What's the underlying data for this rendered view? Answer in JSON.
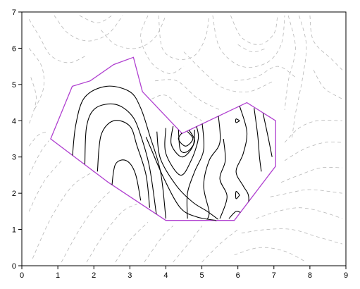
{
  "chart_data": {
    "type": "contour",
    "title": "",
    "xlabel": "",
    "ylabel": "",
    "xlim": [
      0,
      9
    ],
    "ylim": [
      0,
      7
    ],
    "xticks": [
      "0",
      "1",
      "2",
      "3",
      "4",
      "5",
      "6",
      "7",
      "8",
      "9"
    ],
    "yticks": [
      "0",
      "1",
      "2",
      "3",
      "4",
      "5",
      "6",
      "7"
    ],
    "grid": false,
    "colors": {
      "boundary": "#b040d0",
      "inner_contours": "#000000",
      "outer_contours": "#b8b8b8"
    },
    "boundary_polygon": [
      [
        0.8,
        3.5
      ],
      [
        1.4,
        4.95
      ],
      [
        1.9,
        5.1
      ],
      [
        2.55,
        5.55
      ],
      [
        3.1,
        5.75
      ],
      [
        3.35,
        4.8
      ],
      [
        4.45,
        3.65
      ],
      [
        6.25,
        4.5
      ],
      [
        7.05,
        4.0
      ],
      [
        7.05,
        2.75
      ],
      [
        5.9,
        1.25
      ],
      [
        4.0,
        1.25
      ],
      [
        2.4,
        2.3
      ],
      [
        0.8,
        3.5
      ]
    ],
    "inner_contours": [
      [
        [
          1.4,
          2.95
        ],
        [
          1.5,
          3.9
        ],
        [
          1.75,
          4.65
        ],
        [
          2.35,
          4.95
        ],
        [
          3.0,
          4.8
        ],
        [
          3.3,
          4.35
        ],
        [
          3.55,
          3.6
        ],
        [
          3.85,
          2.6
        ],
        [
          4.0,
          1.3
        ]
      ],
      [
        [
          1.75,
          2.8
        ],
        [
          1.8,
          3.85
        ],
        [
          2.05,
          4.35
        ],
        [
          2.6,
          4.45
        ],
        [
          3.05,
          4.15
        ],
        [
          3.3,
          3.6
        ],
        [
          3.55,
          2.7
        ],
        [
          3.75,
          1.3
        ]
      ],
      [
        [
          2.1,
          2.6
        ],
        [
          2.2,
          3.6
        ],
        [
          2.55,
          4.0
        ],
        [
          3.0,
          3.85
        ],
        [
          3.2,
          3.3
        ],
        [
          3.45,
          2.5
        ],
        [
          3.55,
          1.6
        ]
      ],
      [
        [
          2.5,
          2.2
        ],
        [
          2.6,
          2.8
        ],
        [
          2.9,
          2.9
        ],
        [
          3.15,
          2.55
        ],
        [
          3.3,
          1.8
        ]
      ],
      [
        [
          3.45,
          3.55
        ],
        [
          3.6,
          3.2
        ],
        [
          3.95,
          2.4
        ],
        [
          4.4,
          1.6
        ],
        [
          4.85,
          1.35
        ],
        [
          5.4,
          1.25
        ]
      ],
      [
        [
          3.75,
          3.7
        ],
        [
          3.85,
          2.95
        ],
        [
          4.3,
          2.2
        ],
        [
          4.75,
          1.75
        ],
        [
          5.15,
          1.5
        ],
        [
          5.45,
          1.28
        ]
      ],
      [
        [
          4.0,
          3.8
        ],
        [
          4.0,
          3.1
        ],
        [
          4.4,
          2.5
        ],
        [
          4.7,
          2.9
        ],
        [
          4.9,
          3.5
        ],
        [
          4.85,
          3.85
        ]
      ],
      [
        [
          4.2,
          3.85
        ],
        [
          4.15,
          3.35
        ],
        [
          4.45,
          3.0
        ],
        [
          4.75,
          3.3
        ],
        [
          4.8,
          3.75
        ]
      ],
      [
        [
          4.5,
          3.72
        ],
        [
          4.35,
          3.5
        ],
        [
          4.55,
          3.3
        ],
        [
          4.75,
          3.5
        ],
        [
          4.6,
          3.7
        ]
      ],
      [
        [
          4.35,
          3.75
        ],
        [
          4.4,
          3.2
        ],
        [
          4.6,
          3.15
        ],
        [
          4.8,
          3.45
        ],
        [
          4.6,
          3.8
        ]
      ],
      [
        [
          5.0,
          4.0
        ],
        [
          5.05,
          3.2
        ],
        [
          4.8,
          2.6
        ],
        [
          4.6,
          2.0
        ],
        [
          4.6,
          1.3
        ]
      ],
      [
        [
          5.45,
          4.2
        ],
        [
          5.5,
          3.4
        ],
        [
          5.2,
          2.9
        ],
        [
          5.05,
          2.2
        ],
        [
          5.2,
          1.5
        ],
        [
          5.15,
          1.28
        ]
      ],
      [
        [
          5.6,
          3.5
        ],
        [
          5.65,
          2.9
        ],
        [
          5.5,
          2.4
        ],
        [
          5.7,
          1.9
        ],
        [
          5.5,
          1.3
        ]
      ],
      [
        [
          5.75,
          1.3
        ],
        [
          5.95,
          1.5
        ],
        [
          6.1,
          1.45
        ]
      ],
      [
        [
          6.05,
          4.4
        ],
        [
          6.25,
          3.7
        ],
        [
          6.15,
          3.1
        ],
        [
          5.95,
          2.6
        ],
        [
          6.15,
          2.2
        ],
        [
          6.3,
          1.9
        ],
        [
          6.25,
          1.3
        ]
      ],
      [
        [
          6.45,
          4.35
        ],
        [
          6.55,
          3.6
        ],
        [
          6.6,
          3.0
        ],
        [
          6.65,
          2.6
        ]
      ],
      [
        [
          6.7,
          4.2
        ],
        [
          6.85,
          3.5
        ],
        [
          6.95,
          3.0
        ]
      ],
      [
        [
          6.05,
          4.0
        ],
        [
          5.95,
          3.95
        ],
        [
          5.95,
          4.05
        ],
        [
          6.05,
          4.0
        ]
      ],
      [
        [
          6.05,
          1.95
        ],
        [
          5.95,
          1.85
        ],
        [
          5.95,
          2.05
        ],
        [
          6.05,
          1.95
        ]
      ]
    ],
    "outer_contours": [
      [
        [
          0.2,
          6.8
        ],
        [
          0.5,
          6.3
        ],
        [
          0.8,
          5.8
        ],
        [
          1.3,
          5.6
        ],
        [
          1.8,
          5.8
        ]
      ],
      [
        [
          0.2,
          6.0
        ],
        [
          0.55,
          5.5
        ],
        [
          0.6,
          4.9
        ],
        [
          0.35,
          4.3
        ]
      ],
      [
        [
          0.25,
          5.2
        ],
        [
          0.4,
          4.6
        ],
        [
          0.2,
          3.9
        ]
      ],
      [
        [
          0.9,
          6.9
        ],
        [
          1.3,
          6.4
        ],
        [
          1.85,
          6.2
        ],
        [
          2.4,
          6.4
        ],
        [
          2.8,
          6.9
        ]
      ],
      [
        [
          1.6,
          6.9
        ],
        [
          2.1,
          6.7
        ],
        [
          2.5,
          6.9
        ]
      ],
      [
        [
          2.2,
          6.5
        ],
        [
          2.6,
          6.1
        ],
        [
          3.2,
          6.0
        ],
        [
          3.7,
          6.3
        ],
        [
          4.0,
          6.9
        ]
      ],
      [
        [
          3.5,
          6.9
        ],
        [
          3.3,
          6.3
        ],
        [
          3.6,
          5.6
        ],
        [
          4.1,
          5.3
        ],
        [
          4.5,
          5.5
        ]
      ],
      [
        [
          3.8,
          6.9
        ],
        [
          3.9,
          6.0
        ],
        [
          4.3,
          5.7
        ],
        [
          4.8,
          5.8
        ],
        [
          5.1,
          6.3
        ],
        [
          5.2,
          6.9
        ]
      ],
      [
        [
          3.6,
          4.6
        ],
        [
          4.0,
          4.7
        ],
        [
          4.5,
          4.3
        ],
        [
          5.0,
          4.0
        ]
      ],
      [
        [
          3.7,
          5.1
        ],
        [
          4.3,
          5.1
        ],
        [
          4.9,
          4.6
        ],
        [
          5.5,
          4.3
        ]
      ],
      [
        [
          4.5,
          5.9
        ],
        [
          5.1,
          5.3
        ],
        [
          5.6,
          4.9
        ],
        [
          6.3,
          4.8
        ],
        [
          7.0,
          5.1
        ]
      ],
      [
        [
          5.3,
          6.9
        ],
        [
          5.5,
          6.0
        ],
        [
          6.1,
          5.5
        ],
        [
          6.8,
          5.6
        ],
        [
          7.2,
          6.1
        ],
        [
          7.3,
          6.9
        ]
      ],
      [
        [
          5.8,
          6.9
        ],
        [
          6.1,
          6.3
        ],
        [
          6.6,
          6.1
        ],
        [
          7.0,
          6.4
        ],
        [
          7.1,
          6.9
        ]
      ],
      [
        [
          6.0,
          6.1
        ],
        [
          6.4,
          5.9
        ],
        [
          6.8,
          6.0
        ]
      ],
      [
        [
          5.9,
          5.1
        ],
        [
          6.5,
          5.2
        ],
        [
          7.1,
          5.5
        ],
        [
          7.6,
          5.2
        ]
      ],
      [
        [
          7.4,
          6.9
        ],
        [
          7.6,
          6.0
        ],
        [
          7.4,
          5.1
        ],
        [
          7.3,
          4.3
        ]
      ],
      [
        [
          7.7,
          6.9
        ],
        [
          7.9,
          6.1
        ],
        [
          7.8,
          5.2
        ],
        [
          7.6,
          4.2
        ],
        [
          7.5,
          3.5
        ]
      ],
      [
        [
          8.0,
          6.9
        ],
        [
          8.1,
          6.2
        ],
        [
          8.6,
          5.7
        ],
        [
          8.9,
          5.4
        ]
      ],
      [
        [
          8.1,
          5.4
        ],
        [
          8.4,
          4.9
        ],
        [
          8.9,
          4.6
        ]
      ],
      [
        [
          7.3,
          3.4
        ],
        [
          7.7,
          3.8
        ],
        [
          8.2,
          4.0
        ],
        [
          8.9,
          4.0
        ]
      ],
      [
        [
          7.3,
          2.9
        ],
        [
          7.8,
          3.2
        ],
        [
          8.4,
          3.4
        ],
        [
          8.9,
          3.4
        ]
      ],
      [
        [
          7.2,
          2.3
        ],
        [
          7.7,
          2.5
        ],
        [
          8.3,
          2.7
        ],
        [
          8.9,
          2.7
        ]
      ],
      [
        [
          6.9,
          1.9
        ],
        [
          7.4,
          2.0
        ],
        [
          8.0,
          2.1
        ],
        [
          8.9,
          2.0
        ]
      ],
      [
        [
          6.5,
          1.3
        ],
        [
          7.1,
          1.5
        ],
        [
          7.7,
          1.6
        ],
        [
          8.3,
          1.5
        ],
        [
          8.9,
          1.3
        ]
      ],
      [
        [
          6.1,
          0.9
        ],
        [
          6.8,
          1.0
        ],
        [
          7.5,
          1.0
        ],
        [
          8.2,
          0.8
        ],
        [
          8.9,
          0.6
        ]
      ],
      [
        [
          5.9,
          0.3
        ],
        [
          6.6,
          0.5
        ],
        [
          7.3,
          0.4
        ],
        [
          7.9,
          0.1
        ]
      ],
      [
        [
          5.0,
          0.1
        ],
        [
          5.5,
          0.6
        ],
        [
          6.0,
          1.0
        ]
      ],
      [
        [
          4.2,
          0.1
        ],
        [
          4.7,
          0.7
        ],
        [
          5.0,
          1.1
        ]
      ],
      [
        [
          3.4,
          0.1
        ],
        [
          3.9,
          0.8
        ],
        [
          4.2,
          1.1
        ]
      ],
      [
        [
          2.6,
          0.1
        ],
        [
          3.0,
          0.7
        ],
        [
          3.5,
          1.2
        ]
      ],
      [
        [
          1.8,
          0.1
        ],
        [
          2.3,
          0.9
        ],
        [
          2.8,
          1.5
        ],
        [
          3.2,
          1.7
        ]
      ],
      [
        [
          1.1,
          0.1
        ],
        [
          1.6,
          1.0
        ],
        [
          2.1,
          1.7
        ],
        [
          2.5,
          2.1
        ]
      ],
      [
        [
          0.3,
          0.2
        ],
        [
          0.8,
          1.3
        ],
        [
          1.4,
          2.2
        ],
        [
          2.0,
          2.6
        ]
      ],
      [
        [
          0.2,
          1.5
        ],
        [
          0.6,
          2.3
        ],
        [
          1.1,
          2.9
        ]
      ],
      [
        [
          0.2,
          2.5
        ],
        [
          0.5,
          3.1
        ],
        [
          0.75,
          3.45
        ]
      ],
      [
        [
          0.2,
          3.3
        ],
        [
          0.45,
          3.6
        ],
        [
          0.7,
          3.7
        ]
      ],
      [
        [
          5.1,
          2.5
        ],
        [
          5.4,
          1.2
        ]
      ],
      [
        [
          6.2,
          3.5
        ],
        [
          6.9,
          2.8
        ]
      ]
    ]
  }
}
